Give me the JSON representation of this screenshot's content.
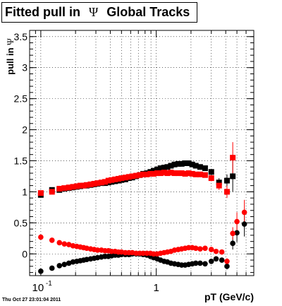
{
  "title": {
    "prefix": "Fitted pull in",
    "symbol": "Ψ",
    "suffix": "Global Tracks"
  },
  "footer_timestamp": "Thu Oct 27 23:01:04 2011",
  "chart_data": {
    "type": "scatter",
    "xlabel": "pT (GeV/c)",
    "ylabel_prefix": "pull in",
    "ylabel_symbol": "Ψ",
    "xscale": "log",
    "xlim": [
      0.08,
      7.0
    ],
    "ylim": [
      -0.35,
      3.6
    ],
    "grid": true,
    "x_tick_labels": [
      {
        "value": 0.1,
        "base": "10",
        "exp": "-1"
      },
      {
        "value": 1,
        "base": "1",
        "exp": ""
      }
    ],
    "y_ticks": [
      0,
      0.5,
      1,
      1.5,
      2,
      2.5,
      3,
      3.5
    ],
    "y_tick_labels": [
      "0",
      "0.5",
      "1",
      "1.5",
      "2",
      "2.5",
      "3",
      "3.5"
    ],
    "series": [
      {
        "color": "#000000",
        "marker": "square",
        "x": [
          0.1,
          0.125,
          0.145,
          0.16,
          0.175,
          0.19,
          0.205,
          0.22,
          0.235,
          0.25,
          0.27,
          0.29,
          0.31,
          0.335,
          0.36,
          0.385,
          0.41,
          0.44,
          0.47,
          0.5,
          0.54,
          0.58,
          0.62,
          0.67,
          0.72,
          0.77,
          0.83,
          0.89,
          0.95,
          1.02,
          1.09,
          1.17,
          1.25,
          1.34,
          1.44,
          1.55,
          1.66,
          1.78,
          1.91,
          2.05,
          2.2,
          2.4,
          2.65,
          3.0,
          3.5,
          4.1,
          4.6
        ],
        "y": [
          0.95,
          1.03,
          1.03,
          1.05,
          1.06,
          1.07,
          1.08,
          1.09,
          1.1,
          1.1,
          1.11,
          1.12,
          1.13,
          1.14,
          1.14,
          1.15,
          1.16,
          1.17,
          1.18,
          1.19,
          1.2,
          1.22,
          1.23,
          1.25,
          1.27,
          1.29,
          1.3,
          1.32,
          1.34,
          1.36,
          1.38,
          1.39,
          1.4,
          1.42,
          1.44,
          1.45,
          1.45,
          1.46,
          1.46,
          1.44,
          1.42,
          1.4,
          1.38,
          1.32,
          1.15,
          1.18,
          1.25
        ],
        "yerr": [
          0.04,
          0.02,
          0.02,
          0.02,
          0.02,
          0.02,
          0.02,
          0.02,
          0.02,
          0.02,
          0.02,
          0.02,
          0.02,
          0.02,
          0.02,
          0.02,
          0.02,
          0.02,
          0.02,
          0.02,
          0.02,
          0.02,
          0.02,
          0.02,
          0.02,
          0.02,
          0.02,
          0.02,
          0.02,
          0.02,
          0.02,
          0.02,
          0.02,
          0.02,
          0.02,
          0.03,
          0.03,
          0.03,
          0.03,
          0.03,
          0.03,
          0.04,
          0.04,
          0.05,
          0.07,
          0.1,
          0.25
        ]
      },
      {
        "color": "#ff0000",
        "marker": "square",
        "x": [
          0.1,
          0.125,
          0.145,
          0.16,
          0.175,
          0.19,
          0.205,
          0.22,
          0.235,
          0.25,
          0.27,
          0.29,
          0.31,
          0.335,
          0.36,
          0.385,
          0.41,
          0.44,
          0.47,
          0.5,
          0.54,
          0.58,
          0.62,
          0.67,
          0.72,
          0.77,
          0.83,
          0.89,
          0.95,
          1.02,
          1.09,
          1.17,
          1.25,
          1.34,
          1.44,
          1.55,
          1.66,
          1.78,
          1.91,
          2.05,
          2.2,
          2.4,
          2.65,
          3.0,
          3.5,
          4.1,
          4.6
        ],
        "y": [
          0.98,
          1.0,
          1.05,
          1.06,
          1.07,
          1.08,
          1.09,
          1.1,
          1.1,
          1.11,
          1.12,
          1.13,
          1.14,
          1.15,
          1.16,
          1.18,
          1.19,
          1.2,
          1.21,
          1.22,
          1.23,
          1.24,
          1.25,
          1.26,
          1.27,
          1.28,
          1.28,
          1.29,
          1.29,
          1.3,
          1.3,
          1.31,
          1.3,
          1.31,
          1.3,
          1.3,
          1.3,
          1.29,
          1.3,
          1.29,
          1.28,
          1.28,
          1.27,
          1.22,
          1.1,
          1.0,
          1.55
        ],
        "yerr": [
          0.04,
          0.02,
          0.02,
          0.02,
          0.02,
          0.02,
          0.02,
          0.02,
          0.02,
          0.02,
          0.02,
          0.02,
          0.02,
          0.02,
          0.02,
          0.02,
          0.02,
          0.02,
          0.02,
          0.02,
          0.02,
          0.02,
          0.02,
          0.02,
          0.02,
          0.02,
          0.02,
          0.02,
          0.02,
          0.02,
          0.02,
          0.02,
          0.02,
          0.02,
          0.02,
          0.03,
          0.03,
          0.03,
          0.03,
          0.03,
          0.03,
          0.04,
          0.04,
          0.05,
          0.07,
          0.1,
          0.25
        ]
      },
      {
        "color": "#000000",
        "marker": "circle",
        "x": [
          0.1,
          0.125,
          0.145,
          0.16,
          0.175,
          0.19,
          0.205,
          0.22,
          0.235,
          0.25,
          0.27,
          0.29,
          0.31,
          0.335,
          0.36,
          0.385,
          0.41,
          0.44,
          0.47,
          0.5,
          0.54,
          0.58,
          0.62,
          0.67,
          0.72,
          0.77,
          0.83,
          0.89,
          0.95,
          1.02,
          1.09,
          1.17,
          1.25,
          1.34,
          1.44,
          1.55,
          1.66,
          1.78,
          1.91,
          2.05,
          2.2,
          2.4,
          2.65,
          3.0,
          3.3,
          3.7,
          4.1,
          4.6,
          5.0,
          5.8
        ],
        "y": [
          -0.28,
          -0.23,
          -0.19,
          -0.17,
          -0.15,
          -0.13,
          -0.12,
          -0.11,
          -0.1,
          -0.09,
          -0.08,
          -0.07,
          -0.06,
          -0.05,
          -0.04,
          -0.04,
          -0.03,
          -0.02,
          -0.02,
          -0.01,
          -0.01,
          -0.01,
          0.0,
          0.0,
          0.0,
          -0.01,
          -0.02,
          -0.04,
          -0.06,
          -0.08,
          -0.1,
          -0.12,
          -0.13,
          -0.15,
          -0.16,
          -0.17,
          -0.18,
          -0.18,
          -0.17,
          -0.16,
          -0.15,
          -0.15,
          -0.16,
          -0.12,
          -0.08,
          -0.1,
          -0.2,
          0.17,
          0.34,
          0.48
        ],
        "yerr": [
          0.02,
          0.02,
          0.01,
          0.01,
          0.01,
          0.01,
          0.01,
          0.01,
          0.01,
          0.01,
          0.01,
          0.01,
          0.01,
          0.01,
          0.01,
          0.01,
          0.01,
          0.01,
          0.01,
          0.01,
          0.01,
          0.01,
          0.01,
          0.01,
          0.01,
          0.01,
          0.01,
          0.01,
          0.01,
          0.01,
          0.01,
          0.01,
          0.01,
          0.01,
          0.02,
          0.02,
          0.02,
          0.02,
          0.02,
          0.02,
          0.02,
          0.03,
          0.03,
          0.03,
          0.04,
          0.04,
          0.05,
          0.1,
          0.15,
          0.2
        ]
      },
      {
        "color": "#ff0000",
        "marker": "circle",
        "x": [
          0.1,
          0.125,
          0.145,
          0.16,
          0.175,
          0.19,
          0.205,
          0.22,
          0.235,
          0.25,
          0.27,
          0.29,
          0.31,
          0.335,
          0.36,
          0.385,
          0.41,
          0.44,
          0.47,
          0.5,
          0.54,
          0.58,
          0.62,
          0.67,
          0.72,
          0.77,
          0.83,
          0.89,
          0.95,
          1.02,
          1.09,
          1.17,
          1.25,
          1.34,
          1.44,
          1.55,
          1.66,
          1.78,
          1.91,
          2.05,
          2.2,
          2.4,
          2.65,
          3.0,
          3.3,
          3.7,
          4.1,
          4.6,
          5.0,
          5.8
        ],
        "y": [
          0.27,
          0.22,
          0.18,
          0.16,
          0.15,
          0.13,
          0.12,
          0.11,
          0.1,
          0.09,
          0.08,
          0.07,
          0.06,
          0.06,
          0.05,
          0.05,
          0.04,
          0.04,
          0.03,
          0.03,
          0.02,
          0.02,
          0.02,
          0.01,
          0.01,
          0.01,
          0.01,
          0.01,
          0.0,
          0.0,
          0.01,
          0.02,
          0.03,
          0.04,
          0.06,
          0.07,
          0.08,
          0.09,
          0.1,
          0.1,
          0.09,
          0.08,
          0.09,
          0.07,
          0.04,
          0.03,
          -0.12,
          0.33,
          0.52,
          0.67
        ],
        "yerr": [
          0.02,
          0.02,
          0.01,
          0.01,
          0.01,
          0.01,
          0.01,
          0.01,
          0.01,
          0.01,
          0.01,
          0.01,
          0.01,
          0.01,
          0.01,
          0.01,
          0.01,
          0.01,
          0.01,
          0.01,
          0.01,
          0.01,
          0.01,
          0.01,
          0.01,
          0.01,
          0.01,
          0.01,
          0.01,
          0.01,
          0.01,
          0.01,
          0.01,
          0.01,
          0.02,
          0.02,
          0.02,
          0.02,
          0.02,
          0.02,
          0.02,
          0.03,
          0.03,
          0.03,
          0.04,
          0.04,
          0.05,
          0.1,
          0.15,
          0.2
        ]
      }
    ]
  }
}
